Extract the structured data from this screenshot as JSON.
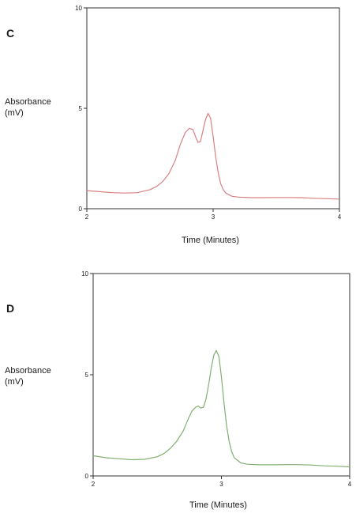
{
  "chart_data": [
    {
      "type": "line",
      "panel_label": "C",
      "title": "",
      "xlabel": "Time (Minutes)",
      "ylabel": "Absorbance (mV)",
      "xlim": [
        2,
        4
      ],
      "ylim": [
        0,
        10
      ],
      "x_ticks": [
        "2",
        "3",
        "4"
      ],
      "y_ticks": [
        "0",
        "5",
        "10"
      ],
      "grid": false,
      "series": [
        {
          "color": "#d98080",
          "x": [
            2.0,
            2.1,
            2.2,
            2.3,
            2.4,
            2.5,
            2.55,
            2.6,
            2.65,
            2.7,
            2.74,
            2.78,
            2.81,
            2.84,
            2.86,
            2.88,
            2.9,
            2.92,
            2.94,
            2.96,
            2.98,
            3.0,
            3.02,
            3.04,
            3.06,
            3.08,
            3.1,
            3.15,
            3.2,
            3.3,
            3.4,
            3.5,
            3.6,
            3.7,
            3.8,
            3.9,
            4.0
          ],
          "values": [
            0.9,
            0.85,
            0.8,
            0.78,
            0.8,
            0.95,
            1.1,
            1.35,
            1.75,
            2.4,
            3.2,
            3.8,
            4.0,
            3.95,
            3.6,
            3.3,
            3.35,
            3.9,
            4.45,
            4.75,
            4.5,
            3.6,
            2.6,
            1.8,
            1.25,
            0.95,
            0.78,
            0.62,
            0.58,
            0.55,
            0.55,
            0.56,
            0.56,
            0.55,
            0.52,
            0.5,
            0.48
          ]
        }
      ]
    },
    {
      "type": "line",
      "panel_label": "D",
      "title": "",
      "xlabel": "Time (Minutes)",
      "ylabel": "Absorbance (mV)",
      "xlim": [
        2,
        4
      ],
      "ylim": [
        0,
        10
      ],
      "x_ticks": [
        "2",
        "3",
        "4"
      ],
      "y_ticks": [
        "0",
        "5",
        "10"
      ],
      "grid": false,
      "series": [
        {
          "color": "#80b070",
          "x": [
            2.0,
            2.1,
            2.2,
            2.3,
            2.4,
            2.5,
            2.55,
            2.6,
            2.65,
            2.7,
            2.74,
            2.77,
            2.8,
            2.82,
            2.84,
            2.86,
            2.88,
            2.9,
            2.92,
            2.94,
            2.96,
            2.98,
            3.0,
            3.02,
            3.04,
            3.06,
            3.08,
            3.1,
            3.15,
            3.2,
            3.3,
            3.4,
            3.5,
            3.6,
            3.7,
            3.8,
            3.9,
            4.0
          ],
          "values": [
            1.0,
            0.9,
            0.85,
            0.8,
            0.82,
            0.95,
            1.1,
            1.35,
            1.7,
            2.2,
            2.8,
            3.2,
            3.4,
            3.45,
            3.35,
            3.4,
            3.8,
            4.5,
            5.3,
            5.95,
            6.2,
            5.9,
            4.9,
            3.6,
            2.5,
            1.7,
            1.2,
            0.9,
            0.65,
            0.58,
            0.55,
            0.55,
            0.56,
            0.56,
            0.54,
            0.5,
            0.48,
            0.45
          ]
        }
      ]
    }
  ]
}
